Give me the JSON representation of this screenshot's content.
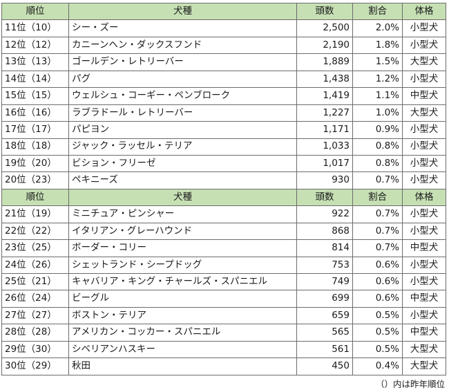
{
  "header": {
    "rank": "順位",
    "breed": "犬種",
    "count": "頭数",
    "share": "割合",
    "size": "体格"
  },
  "sections": [
    {
      "rows": [
        {
          "rank": "11位（10）",
          "breed": "シー・ズー",
          "count": "2,500",
          "share": "2.0%",
          "size": "小型犬"
        },
        {
          "rank": "12位（12）",
          "breed": "カニーンヘン・ダックスフンド",
          "count": "2,190",
          "share": "1.8%",
          "size": "小型犬"
        },
        {
          "rank": "13位（13）",
          "breed": "ゴールデン・レトリーバー",
          "count": "1,889",
          "share": "1.5%",
          "size": "大型犬"
        },
        {
          "rank": "14位（14）",
          "breed": "パグ",
          "count": "1,438",
          "share": "1.2%",
          "size": "小型犬"
        },
        {
          "rank": "15位（15）",
          "breed": "ウェルシュ・コーギー・ペンブローク",
          "count": "1,419",
          "share": "1.1%",
          "size": "中型犬"
        },
        {
          "rank": "16位（16）",
          "breed": "ラブラドール・レトリーバー",
          "count": "1,227",
          "share": "1.0%",
          "size": "大型犬"
        },
        {
          "rank": "17位（17）",
          "breed": "パピヨン",
          "count": "1,171",
          "share": "0.9%",
          "size": "小型犬"
        },
        {
          "rank": "18位（18）",
          "breed": "ジャック・ラッセル・テリア",
          "count": "1,033",
          "share": "0.8%",
          "size": "小型犬"
        },
        {
          "rank": "19位（20）",
          "breed": "ビション・フリーゼ",
          "count": "1,017",
          "share": "0.8%",
          "size": "小型犬"
        },
        {
          "rank": "20位（23）",
          "breed": "ペキニーズ",
          "count": "930",
          "share": "0.7%",
          "size": "小型犬"
        }
      ]
    },
    {
      "rows": [
        {
          "rank": "21位（19）",
          "breed": "ミニチュア・ピンシャー",
          "count": "922",
          "share": "0.7%",
          "size": "小型犬"
        },
        {
          "rank": "22位（22）",
          "breed": "イタリアン・グレーハウンド",
          "count": "868",
          "share": "0.7%",
          "size": "小型犬"
        },
        {
          "rank": "23位（25）",
          "breed": "ボーダー・コリー",
          "count": "814",
          "share": "0.7%",
          "size": "中型犬"
        },
        {
          "rank": "24位（26）",
          "breed": "シェットランド・シープドッグ",
          "count": "753",
          "share": "0.6%",
          "size": "小型犬"
        },
        {
          "rank": "25位（21）",
          "breed": "キャバリア・キング・チャールズ・スパニエル",
          "count": "749",
          "share": "0.6%",
          "size": "小型犬"
        },
        {
          "rank": "26位（24）",
          "breed": "ビーグル",
          "count": "699",
          "share": "0.6%",
          "size": "中型犬"
        },
        {
          "rank": "27位（27）",
          "breed": "ボストン・テリア",
          "count": "659",
          "share": "0.5%",
          "size": "小型犬"
        },
        {
          "rank": "28位（28）",
          "breed": "アメリカン・コッカー・スパニエル",
          "count": "565",
          "share": "0.5%",
          "size": "中型犬"
        },
        {
          "rank": "29位（30）",
          "breed": "シベリアンハスキー",
          "count": "561",
          "share": "0.5%",
          "size": "大型犬"
        },
        {
          "rank": "30位（29）",
          "breed": "秋田",
          "count": "450",
          "share": "0.4%",
          "size": "大型犬"
        }
      ]
    }
  ],
  "note": "（）内は昨年順位",
  "colors": {
    "header_bg": "#c6e0b4",
    "border": "#6b6b6b"
  }
}
